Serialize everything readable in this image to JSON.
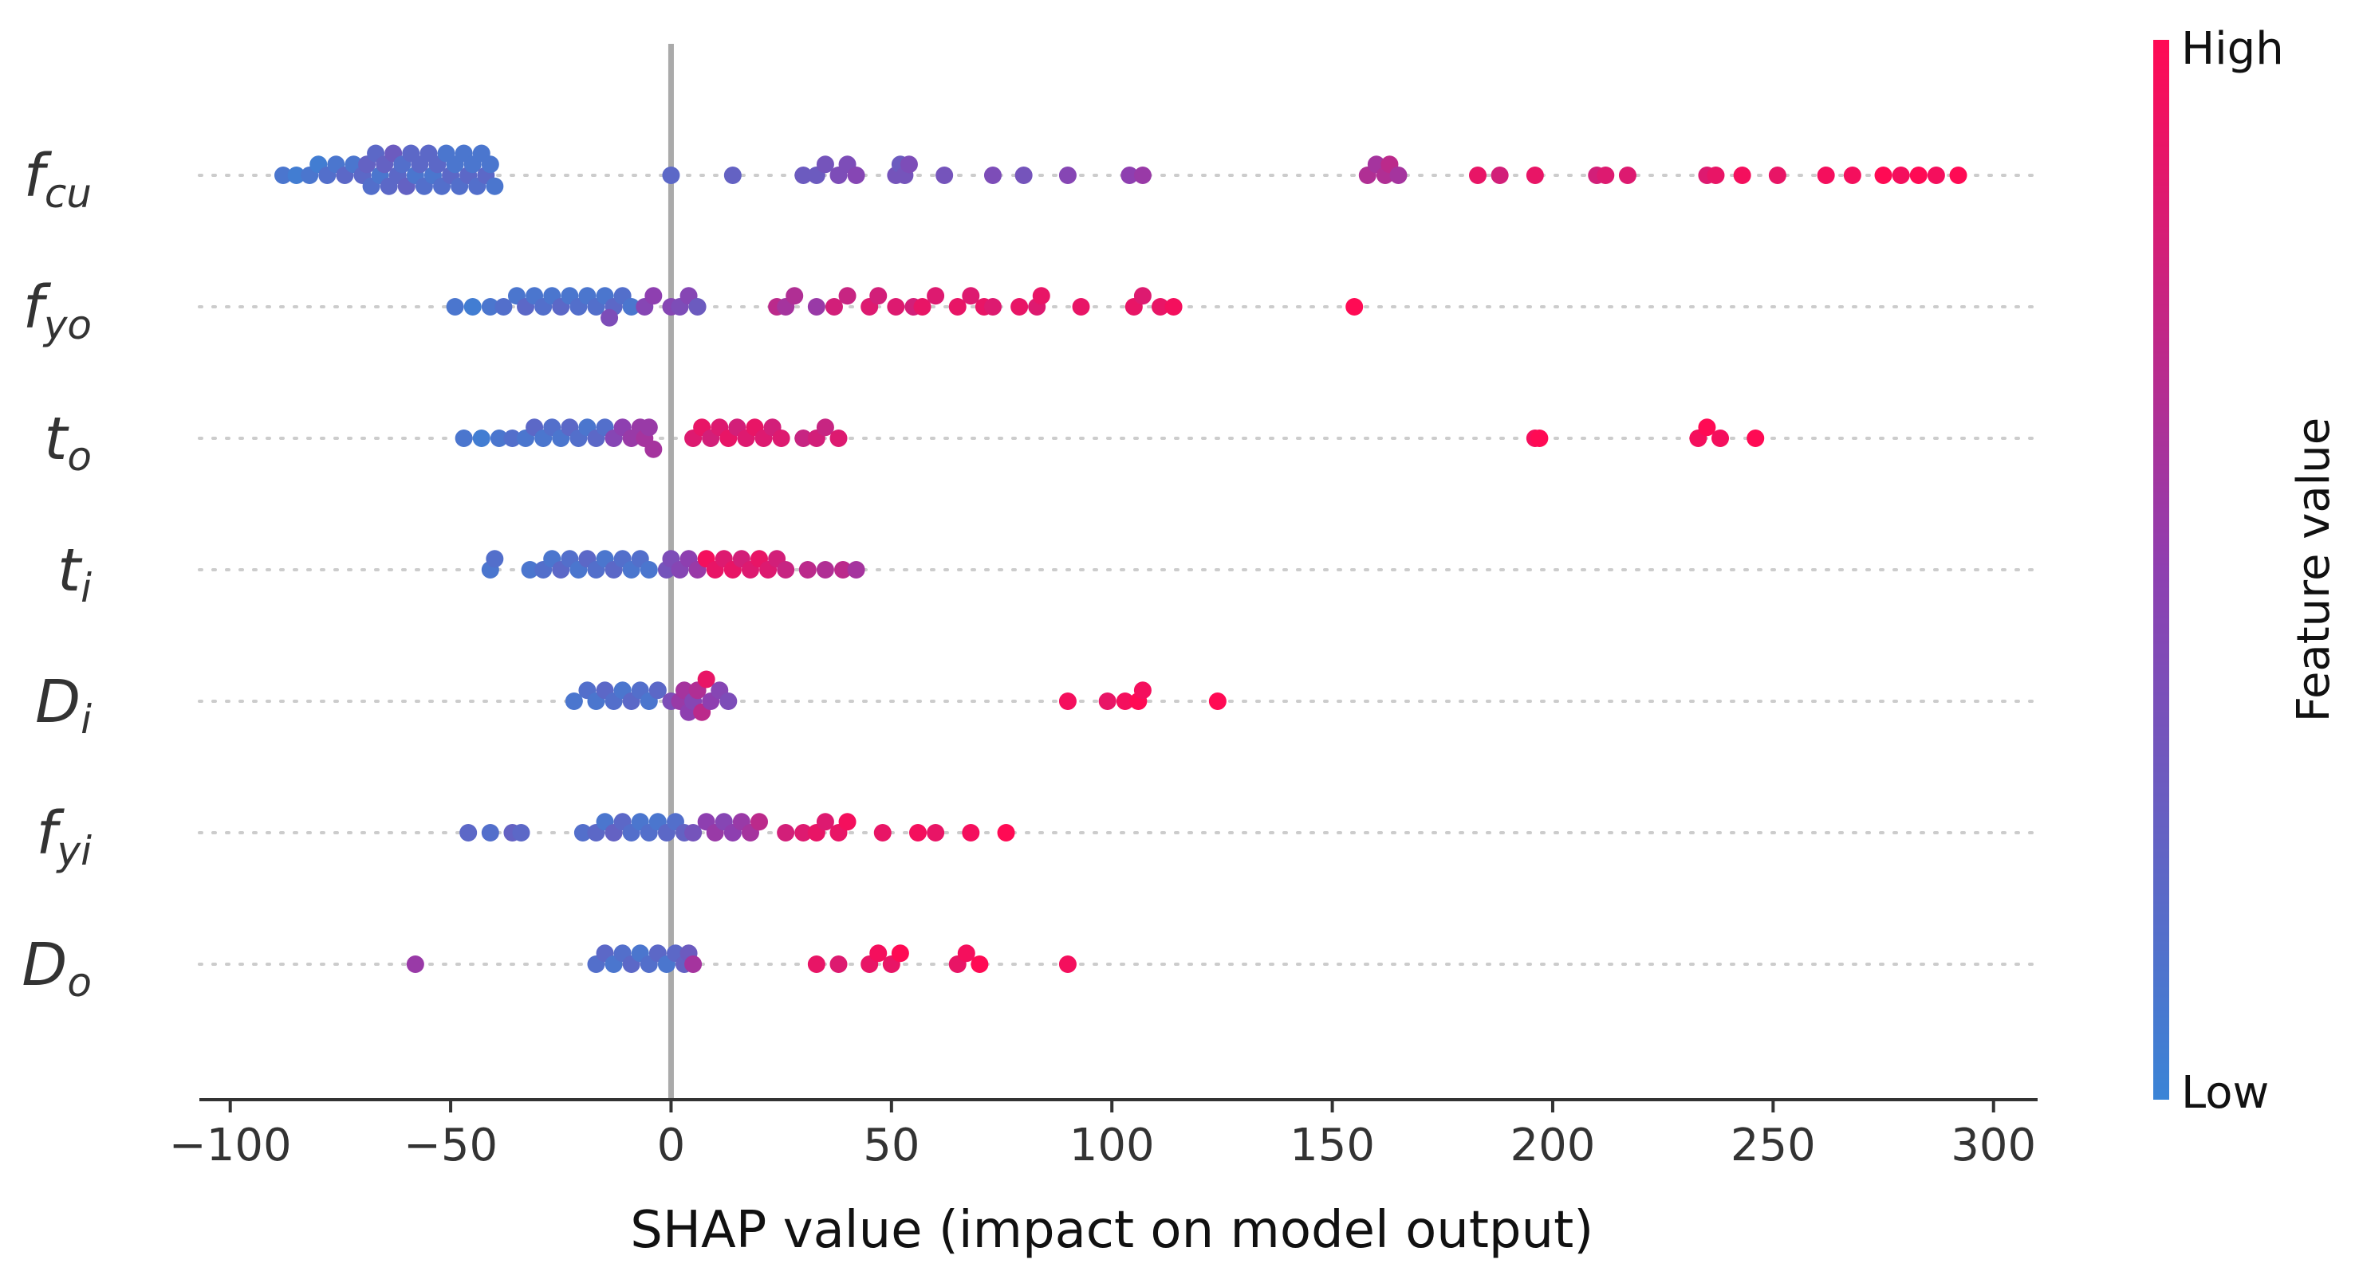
{
  "colors": {
    "low": "#3a84d6",
    "mid": "#8e3fb0",
    "high": "#ff0a54",
    "zero_line": "#aaaaaa",
    "gridline": "#cccccc",
    "axis": "#333333"
  },
  "chart_data": {
    "type": "scatter",
    "subtype": "shap-beeswarm",
    "xlabel": "SHAP value (impact on model output)",
    "xlim": [
      -107,
      310
    ],
    "xticks": [
      -100,
      -50,
      0,
      50,
      100,
      150,
      200,
      250,
      300
    ],
    "xtick_labels": [
      "−100",
      "−50",
      "0",
      "50",
      "100",
      "150",
      "200",
      "250",
      "300"
    ],
    "zero_line": 0,
    "colorbar": {
      "title": "Feature value",
      "high_label": "High",
      "low_label": "Low"
    },
    "features": [
      {
        "base": "f",
        "sub": "cu",
        "points": [
          [
            -88,
            0.1
          ],
          [
            -85,
            0.05
          ],
          [
            -82,
            0.1
          ],
          [
            -80,
            0.05
          ],
          [
            -78,
            0.15
          ],
          [
            -76,
            0.1
          ],
          [
            -74,
            0.2
          ],
          [
            -72,
            0.1
          ],
          [
            -70,
            0.2
          ],
          [
            -69,
            0.25
          ],
          [
            -68,
            0.15
          ],
          [
            -67,
            0.2
          ],
          [
            -66,
            0.1
          ],
          [
            -65,
            0.25
          ],
          [
            -64,
            0.2
          ],
          [
            -63,
            0.3
          ],
          [
            -62,
            0.2
          ],
          [
            -61,
            0.15
          ],
          [
            -60,
            0.25
          ],
          [
            -59,
            0.2
          ],
          [
            -58,
            0.1
          ],
          [
            -57,
            0.2
          ],
          [
            -56,
            0.15
          ],
          [
            -55,
            0.2
          ],
          [
            -54,
            0.1
          ],
          [
            -53,
            0.2
          ],
          [
            -52,
            0.15
          ],
          [
            -51,
            0.1
          ],
          [
            -50,
            0.2
          ],
          [
            -49,
            0.1
          ],
          [
            -48,
            0.15
          ],
          [
            -47,
            0.1
          ],
          [
            -46,
            0.2
          ],
          [
            -45,
            0.1
          ],
          [
            -44,
            0.15
          ],
          [
            -43,
            0.1
          ],
          [
            -42,
            0.2
          ],
          [
            -41,
            0.1
          ],
          [
            -40,
            0.1
          ],
          [
            0,
            0.2
          ],
          [
            14,
            0.25
          ],
          [
            30,
            0.3
          ],
          [
            33,
            0.3
          ],
          [
            35,
            0.35
          ],
          [
            38,
            0.4
          ],
          [
            40,
            0.4
          ],
          [
            42,
            0.45
          ],
          [
            51,
            0.35
          ],
          [
            52,
            0.3
          ],
          [
            53,
            0.35
          ],
          [
            54,
            0.4
          ],
          [
            62,
            0.35
          ],
          [
            73,
            0.4
          ],
          [
            80,
            0.35
          ],
          [
            90,
            0.45
          ],
          [
            104,
            0.5
          ],
          [
            107,
            0.55
          ],
          [
            158,
            0.65
          ],
          [
            160,
            0.6
          ],
          [
            162,
            0.65
          ],
          [
            163,
            0.7
          ],
          [
            165,
            0.6
          ],
          [
            183,
            0.9
          ],
          [
            188,
            0.8
          ],
          [
            196,
            0.9
          ],
          [
            210,
            0.8
          ],
          [
            212,
            0.85
          ],
          [
            217,
            0.85
          ],
          [
            235,
            0.85
          ],
          [
            237,
            0.9
          ],
          [
            243,
            0.95
          ],
          [
            251,
            0.9
          ],
          [
            262,
            0.95
          ],
          [
            268,
            0.95
          ],
          [
            275,
            1
          ],
          [
            279,
            0.95
          ],
          [
            283,
            1
          ],
          [
            287,
            0.95
          ],
          [
            292,
            1
          ]
        ]
      },
      {
        "base": "f",
        "sub": "yo",
        "points": [
          [
            -49,
            0.1
          ],
          [
            -45,
            0.05
          ],
          [
            -41,
            0.1
          ],
          [
            -38,
            0.15
          ],
          [
            -35,
            0.1
          ],
          [
            -33,
            0.2
          ],
          [
            -31,
            0.1
          ],
          [
            -29,
            0.15
          ],
          [
            -27,
            0.1
          ],
          [
            -25,
            0.2
          ],
          [
            -23,
            0.1
          ],
          [
            -21,
            0.15
          ],
          [
            -19,
            0.1
          ],
          [
            -17,
            0.15
          ],
          [
            -15,
            0.1
          ],
          [
            -13,
            0.2
          ],
          [
            -11,
            0.15
          ],
          [
            -9,
            0.1
          ],
          [
            -14,
            0.4
          ],
          [
            -6,
            0.45
          ],
          [
            -4,
            0.5
          ],
          [
            0,
            0.45
          ],
          [
            2,
            0.4
          ],
          [
            4,
            0.45
          ],
          [
            6,
            0.3
          ],
          [
            24,
            0.7
          ],
          [
            26,
            0.6
          ],
          [
            28,
            0.65
          ],
          [
            33,
            0.55
          ],
          [
            37,
            0.8
          ],
          [
            40,
            0.75
          ],
          [
            45,
            0.85
          ],
          [
            47,
            0.8
          ],
          [
            51,
            0.85
          ],
          [
            55,
            0.8
          ],
          [
            57,
            0.9
          ],
          [
            60,
            0.85
          ],
          [
            65,
            0.9
          ],
          [
            68,
            0.85
          ],
          [
            71,
            0.9
          ],
          [
            73,
            0.85
          ],
          [
            79,
            0.9
          ],
          [
            83,
            0.85
          ],
          [
            84,
            0.9
          ],
          [
            93,
            0.9
          ],
          [
            105,
            0.9
          ],
          [
            107,
            0.85
          ],
          [
            111,
            0.9
          ],
          [
            114,
            0.95
          ],
          [
            155,
            1
          ]
        ]
      },
      {
        "base": "t",
        "sub": "o",
        "points": [
          [
            -47,
            0.1
          ],
          [
            -43,
            0.05
          ],
          [
            -39,
            0.1
          ],
          [
            -36,
            0.15
          ],
          [
            -33,
            0.1
          ],
          [
            -31,
            0.2
          ],
          [
            -29,
            0.1
          ],
          [
            -27,
            0.15
          ],
          [
            -25,
            0.1
          ],
          [
            -23,
            0.2
          ],
          [
            -21,
            0.15
          ],
          [
            -19,
            0.1
          ],
          [
            -17,
            0.2
          ],
          [
            -15,
            0.15
          ],
          [
            -13,
            0.45
          ],
          [
            -11,
            0.5
          ],
          [
            -9,
            0.55
          ],
          [
            -7,
            0.55
          ],
          [
            -6,
            0.6
          ],
          [
            -5,
            0.55
          ],
          [
            -4,
            0.6
          ],
          [
            5,
            0.85
          ],
          [
            7,
            0.9
          ],
          [
            9,
            0.8
          ],
          [
            11,
            0.85
          ],
          [
            13,
            0.9
          ],
          [
            15,
            0.8
          ],
          [
            17,
            0.85
          ],
          [
            19,
            0.9
          ],
          [
            21,
            0.85
          ],
          [
            23,
            0.8
          ],
          [
            25,
            0.85
          ],
          [
            30,
            0.75
          ],
          [
            33,
            0.8
          ],
          [
            35,
            0.75
          ],
          [
            38,
            0.85
          ],
          [
            196,
            0.95
          ],
          [
            197,
            1
          ],
          [
            233,
            0.95
          ],
          [
            235,
            1
          ],
          [
            238,
            0.95
          ],
          [
            246,
            1
          ]
        ]
      },
      {
        "base": "t",
        "sub": "i",
        "points": [
          [
            -41,
            0.1
          ],
          [
            -40,
            0.15
          ],
          [
            -32,
            0.1
          ],
          [
            -29,
            0.15
          ],
          [
            -27,
            0.1
          ],
          [
            -25,
            0.2
          ],
          [
            -23,
            0.15
          ],
          [
            -21,
            0.1
          ],
          [
            -19,
            0.2
          ],
          [
            -17,
            0.15
          ],
          [
            -15,
            0.1
          ],
          [
            -13,
            0.2
          ],
          [
            -11,
            0.15
          ],
          [
            -9,
            0.1
          ],
          [
            -7,
            0.15
          ],
          [
            -5,
            0.1
          ],
          [
            -1,
            0.35
          ],
          [
            0,
            0.4
          ],
          [
            2,
            0.45
          ],
          [
            4,
            0.5
          ],
          [
            6,
            0.55
          ],
          [
            8,
            0.95
          ],
          [
            10,
            0.9
          ],
          [
            12,
            0.85
          ],
          [
            14,
            0.9
          ],
          [
            16,
            0.8
          ],
          [
            18,
            0.85
          ],
          [
            20,
            0.9
          ],
          [
            22,
            0.85
          ],
          [
            24,
            0.8
          ],
          [
            26,
            0.75
          ],
          [
            31,
            0.7
          ],
          [
            35,
            0.65
          ],
          [
            39,
            0.7
          ],
          [
            42,
            0.6
          ]
        ]
      },
      {
        "base": "D",
        "sub": "i",
        "points": [
          [
            -22,
            0.1
          ],
          [
            -19,
            0.15
          ],
          [
            -17,
            0.1
          ],
          [
            -15,
            0.2
          ],
          [
            -13,
            0.15
          ],
          [
            -11,
            0.1
          ],
          [
            -9,
            0.2
          ],
          [
            -7,
            0.15
          ],
          [
            -5,
            0.1
          ],
          [
            -3,
            0.2
          ],
          [
            0,
            0.4
          ],
          [
            2,
            0.55
          ],
          [
            3,
            0.6
          ],
          [
            4,
            0.5
          ],
          [
            5,
            0.45
          ],
          [
            6,
            0.65
          ],
          [
            7,
            0.7
          ],
          [
            8,
            0.9
          ],
          [
            9,
            0.5
          ],
          [
            11,
            0.45
          ],
          [
            13,
            0.4
          ],
          [
            90,
            0.95
          ],
          [
            99,
            0.9
          ],
          [
            103,
            0.95
          ],
          [
            106,
            1
          ],
          [
            107,
            0.95
          ],
          [
            124,
            1
          ]
        ]
      },
      {
        "base": "f",
        "sub": "yi",
        "points": [
          [
            -46,
            0.2
          ],
          [
            -41,
            0.15
          ],
          [
            -36,
            0.25
          ],
          [
            -34,
            0.2
          ],
          [
            -20,
            0.15
          ],
          [
            -17,
            0.2
          ],
          [
            -15,
            0.1
          ],
          [
            -13,
            0.25
          ],
          [
            -11,
            0.2
          ],
          [
            -9,
            0.15
          ],
          [
            -7,
            0.1
          ],
          [
            -5,
            0.15
          ],
          [
            -3,
            0.1
          ],
          [
            -1,
            0.2
          ],
          [
            1,
            0.15
          ],
          [
            3,
            0.25
          ],
          [
            5,
            0.35
          ],
          [
            8,
            0.5
          ],
          [
            10,
            0.55
          ],
          [
            12,
            0.45
          ],
          [
            14,
            0.5
          ],
          [
            16,
            0.55
          ],
          [
            18,
            0.6
          ],
          [
            20,
            0.7
          ],
          [
            26,
            0.8
          ],
          [
            30,
            0.85
          ],
          [
            33,
            0.9
          ],
          [
            35,
            0.85
          ],
          [
            38,
            0.9
          ],
          [
            40,
            0.95
          ],
          [
            48,
            0.9
          ],
          [
            56,
            0.95
          ],
          [
            60,
            0.9
          ],
          [
            68,
            0.95
          ],
          [
            76,
            1
          ]
        ]
      },
      {
        "base": "D",
        "sub": "o",
        "points": [
          [
            -58,
            0.55
          ],
          [
            -17,
            0.15
          ],
          [
            -15,
            0.2
          ],
          [
            -13,
            0.1
          ],
          [
            -11,
            0.15
          ],
          [
            -9,
            0.2
          ],
          [
            -7,
            0.1
          ],
          [
            -5,
            0.15
          ],
          [
            -3,
            0.2
          ],
          [
            -1,
            0.1
          ],
          [
            1,
            0.2
          ],
          [
            3,
            0.25
          ],
          [
            4,
            0.3
          ],
          [
            5,
            0.6
          ],
          [
            33,
            0.9
          ],
          [
            38,
            0.85
          ],
          [
            45,
            0.9
          ],
          [
            47,
            0.95
          ],
          [
            50,
            0.9
          ],
          [
            52,
            1
          ],
          [
            65,
            0.9
          ],
          [
            67,
            0.95
          ],
          [
            70,
            1
          ],
          [
            90,
            0.95
          ]
        ]
      }
    ]
  }
}
